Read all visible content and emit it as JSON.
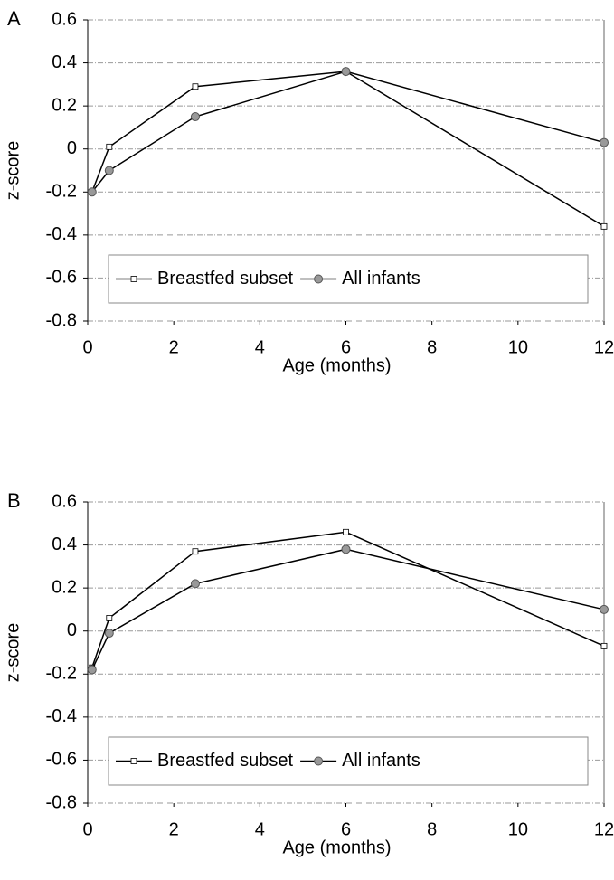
{
  "chart_data": [
    {
      "type": "line",
      "panel": "A",
      "xlabel": "Age (months)",
      "ylabel": "z-score",
      "x": [
        0.1,
        0.5,
        2.5,
        6,
        12
      ],
      "series": [
        {
          "name": "Breastfed subset",
          "color": "#ffffff",
          "values": [
            -0.2,
            0.01,
            0.29,
            0.36,
            -0.36
          ]
        },
        {
          "name": "All infants",
          "color": "#999999",
          "values": [
            -0.2,
            -0.1,
            0.15,
            0.36,
            0.03
          ]
        }
      ],
      "xlim": [
        0,
        12
      ],
      "xticks": [
        0,
        2,
        4,
        6,
        8,
        10,
        12
      ],
      "ylim": [
        -0.8,
        0.6
      ],
      "yticks": [
        0.6,
        0.4,
        0.2,
        0,
        -0.2,
        -0.4,
        -0.6,
        -0.8
      ],
      "grid": true,
      "legend": "bottom"
    },
    {
      "type": "line",
      "panel": "B",
      "xlabel": "Age (months)",
      "ylabel": "z-score",
      "x": [
        0.1,
        0.5,
        2.5,
        6,
        12
      ],
      "series": [
        {
          "name": "Breastfed subset",
          "color": "#ffffff",
          "values": [
            -0.17,
            0.06,
            0.37,
            0.46,
            -0.07
          ]
        },
        {
          "name": "All infants",
          "color": "#999999",
          "values": [
            -0.18,
            -0.01,
            0.22,
            0.38,
            0.1
          ]
        }
      ],
      "xlim": [
        0,
        12
      ],
      "xticks": [
        0,
        2,
        4,
        6,
        8,
        10,
        12
      ],
      "ylim": [
        -0.8,
        0.6
      ],
      "yticks": [
        0.6,
        0.4,
        0.2,
        0,
        -0.2,
        -0.4,
        -0.6,
        -0.8
      ],
      "grid": true,
      "legend": "bottom"
    }
  ]
}
